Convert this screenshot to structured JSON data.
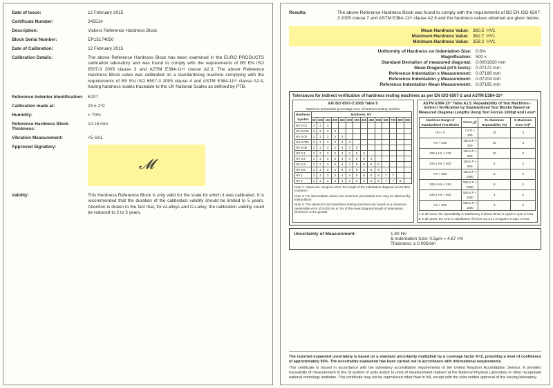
{
  "left": {
    "date_of_issue_lbl": "Date of Issue:",
    "date_of_issue": "12 February 2015",
    "cert_lbl": "Certificate Number:",
    "cert": "245514",
    "desc_lbl": "Description:",
    "desc": "Vickers Reference Hardness Block",
    "serial_lbl": "Block Serial Number:",
    "serial": "EP15174650",
    "cal_date_lbl": "Date of Calibration:",
    "cal_date": "12 February 2015",
    "cal_det_lbl": "Calibration Details:",
    "cal_det": "The above Reference Hardness Block has been examined in the EURO PRODUCTS calibration laboratory and was found to comply with the requirements of BS EN ISO 6507-3 2005 clause 3 and ASTM E384-11ᵉ¹ clause A2.3. The above Reference Hardness Block value was calibrated on a standardising machine complying with the requirements of BS EN ISO 6507-3 2005 clause 4 and ASTM E384-11ᵉ¹ clause A2.4, having hardness scales traceable to the UK National Scales as defined by PTB.",
    "indenter_lbl": "Reference Indenter Identification:",
    "indenter": "E207",
    "cal_at_lbl": "Calibration made at:",
    "cal_at": "23 ± 2°C",
    "hum_lbl": "Humidity:",
    "hum": "< 70%",
    "thick_lbl": "Reference Hardness Block Thickness:",
    "thick": "10.15 mm",
    "vib_lbl": "Vibration Measurement:",
    "vib": "<5 GAL",
    "sig_lbl": "Approved Signatory:",
    "val_lbl": "Validity:",
    "val": "This Hardness Reference Block is only valid for the scale for which it was calibrated. It is recommended that the duration of the calibration validity should be limited to 5 years. Attention is drawn to the fact that, for Al-alloys and Cu-alloy, the calibration validity could be reduced to 2 to 3 years."
  },
  "right": {
    "results_lbl": "Results:",
    "results": "The above Reference Hardness Block was found to comply with the requirements of BS EN ISO 6507-3 2005 clause 7 and ASTM E384-11ᵉ¹ clause A2.6 and the hardness values obtained are given below:",
    "mean_lbl": "Mean Hardness Value:",
    "mean_v": "360.5",
    "mean_u": "HV1",
    "max_lbl": "Maximum Hardness Value:",
    "max_v": "362.7",
    "max_u": "HV1",
    "min_lbl": "Minimum Hardness Value:",
    "min_v": "358.2",
    "min_u": "HV1",
    "uni_lbl": "Uniformity of Hardness on Indentation Size:",
    "uni": "0.6%",
    "mag_lbl": "Magnification:",
    "mag": "500 x",
    "sd_lbl": "Standard Deviation of measured diagonal:",
    "sd": "0.0001820 mm",
    "md_lbl": "Mean Diagonal (of 5 tests):",
    "md": "0.07172 mm",
    "rx_lbl": "Reference Indentation x Measurement:",
    "rx": "0.07186 mm",
    "ry_lbl": "Reference Indentation y Measurement:",
    "ry": "0.07204 mm",
    "rm_lbl": "Reference Indentation Mean Measurement:",
    "rm": "0.07195 mm",
    "tol_title": "Tolerances for indirect verification of hardness testing machines as per EN ISO 6507-2 and ASTM E384-11ᵉ¹",
    "tol_l_title": "EN ISO 6507-2:2005 Table 5",
    "tol_l_sub": "Maximum permissible percentage error of hardness testing machine",
    "tol_r_title": "ASTM E384-11ᵉ¹ Table A1.5. Repeatability of Test Machines - Indirect Verification by Standardised Test Blocks Based on Measured Diagonal Lengths Using Test Forces 1000gf and Lessᴬ",
    "tol_left_rows": [
      "HV 0.01",
      "HV 0.015",
      "HV 0.02",
      "HV 0.025",
      "HV 0.05",
      "HV 0.1",
      "HV 0.2",
      "HV 0.3",
      "HV 0.5",
      "HV 1",
      "HV 2"
    ],
    "tol_right_rows": [
      [
        "HV < 0",
        "1 ≤ P < 100",
        "15",
        "3"
      ],
      [
        "HV < 100",
        "100 ≤ P < 200",
        "15",
        "3"
      ],
      [
        "100 ≤ HV < 240",
        "100 ≤ P < 500",
        "10",
        "2"
      ],
      [
        "240 ≤ HV < 600",
        "100 ≤ P < 500",
        "5",
        "2"
      ],
      [
        "HV > 600",
        "100 ≤ P < 1000",
        "8",
        "2"
      ],
      [
        "100 ≤ HV < 240",
        "500 ≤ P < 1000",
        "8",
        "2"
      ],
      [
        "240 ≤ HV < 600",
        "500 ≤ P < 1000",
        "4",
        "2"
      ],
      [
        "HV > 600",
        "500 ≤ P < 1000",
        "3",
        "2"
      ]
    ],
    "note1": "Note 1: Values are not given when the length of the indentation diagonal is less than 0.020mm",
    "note2": "Note 2: For intermediate values, the maximum permissible error may be obtained by interpolation",
    "note3": "Note 3: The values for microhardness testing machines are based on a maximum permissible error of 0.001mm or 2% of the mean diagonal length of indentation, whichever is the greater",
    "note_a": "A In all cases, the repeatability is satisfactory if (dmax-dmin) is equal to 1µm or less.",
    "note_b": "B In all cases, the error is satisfactory if E from Eq A1.2 is equal to 0.5µm or less.",
    "unc_lbl": "Uncertainty of Measurement:",
    "unc_v": "1.80 HV",
    "unc_ind": "& Indentation Size: 0.5µm = 4.87 HV",
    "unc_th": "Thickness: ± 0.005mm",
    "footer_bold": "The reported expanded uncertainty is based on a standard uncertainty multiplied by a coverage factor K=2, providing a level of confidence of approximately 95%. The uncertainty evaluation has been carried out in accordance with International requirements.",
    "footer": "This certificate is issued in accordance with the laboratory accreditation requirements of the United Kingdom Accreditation Service. It provides traceability of measurement to the SI system of units and/or to units of measurement realised at the National Physical Laboratory or other recognised national metrology institutes. This certificate may not be reproduced other than in full, except with the prior written approval of the issuing laboratory."
  }
}
